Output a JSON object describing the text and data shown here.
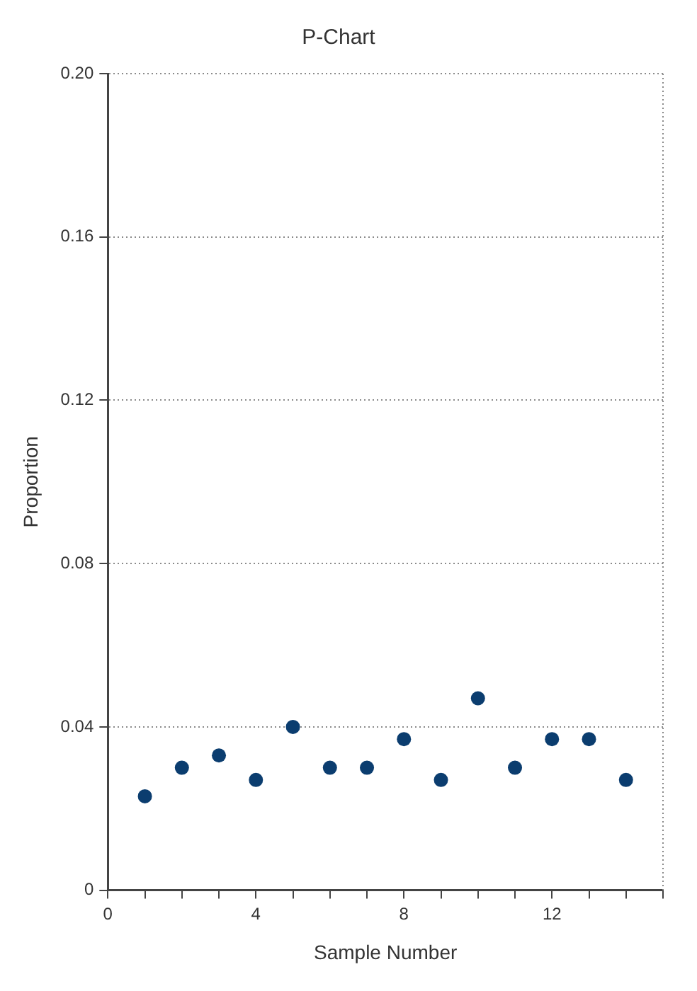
{
  "chart_data": {
    "type": "scatter",
    "title": "P-Chart",
    "xlabel": "Sample Number",
    "ylabel": "Proportion",
    "x": [
      1,
      2,
      3,
      4,
      5,
      6,
      7,
      8,
      9,
      10,
      11,
      12,
      13,
      14
    ],
    "values": [
      0.023,
      0.03,
      0.033,
      0.027,
      0.04,
      0.03,
      0.03,
      0.037,
      0.027,
      0.047,
      0.03,
      0.037,
      0.037,
      0.027
    ],
    "color": "#0b3d6f",
    "marker": "circle",
    "xlim": [
      0,
      15
    ],
    "xticks": [
      0,
      {
        "value": 1,
        "label": null
      },
      {
        "value": 2,
        "label": null
      },
      {
        "value": 3,
        "label": null
      },
      4,
      {
        "value": 5,
        "label": null
      },
      {
        "value": 6,
        "label": null
      },
      {
        "value": 7,
        "label": null
      },
      8,
      {
        "value": 9,
        "label": null
      },
      {
        "value": 10,
        "label": null
      },
      {
        "value": 11,
        "label": null
      },
      12,
      {
        "value": 13,
        "label": null
      },
      {
        "value": 14,
        "label": null
      },
      {
        "value": 15,
        "label": null
      }
    ],
    "ylim": [
      0,
      0.2
    ],
    "yticks": [
      0,
      0.04,
      0.08,
      0.12,
      0.16,
      {
        "value": 0.2,
        "label": "0.20"
      }
    ],
    "grid": "y"
  }
}
